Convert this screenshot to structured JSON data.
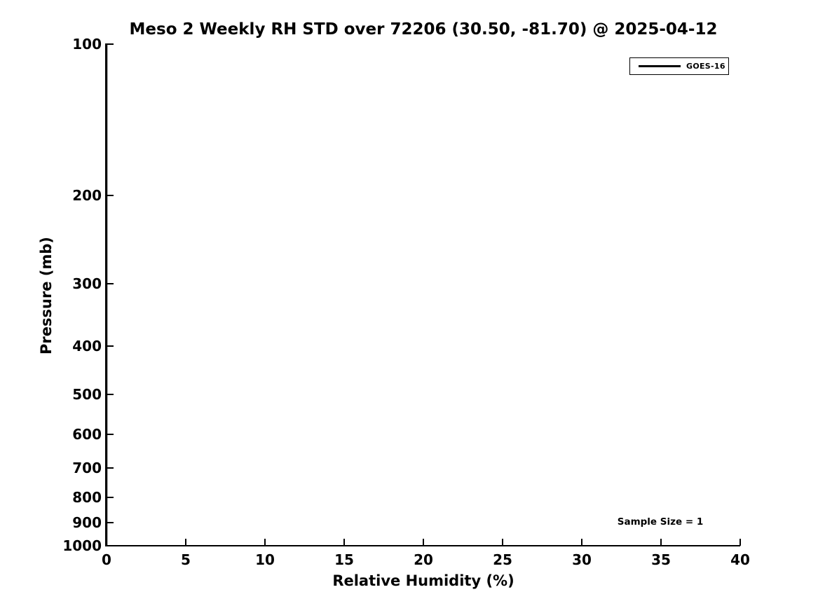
{
  "chart_data": {
    "type": "line",
    "title": "Meso 2 Weekly RH STD over 72206 (30.50, -81.70) @ 2025-04-12",
    "xlabel": "Relative Humidity (%)",
    "ylabel": "Pressure (mb)",
    "xlim": [
      0,
      40
    ],
    "xticks": [
      0,
      5,
      10,
      15,
      20,
      25,
      30,
      35,
      40
    ],
    "yscale": "log",
    "ylim": [
      1000,
      100
    ],
    "y_axis_inverted": true,
    "yticks": [
      100,
      200,
      300,
      400,
      500,
      600,
      700,
      800,
      900,
      1000
    ],
    "grid": false,
    "legend_position": "upper right",
    "series": [
      {
        "name": "GOES-16",
        "color": "#000000",
        "x": [
          0,
          0
        ],
        "pressure_mb": [
          100,
          1000
        ],
        "note": "RH STD = 0 at all levels; renders as vertical line along x = 0 over the left spine"
      }
    ],
    "annotation": {
      "text": "Sample Size = 1",
      "x": 35,
      "pressure_mb": 900
    },
    "colors": {
      "foreground": "#000000",
      "background": "#ffffff"
    }
  }
}
